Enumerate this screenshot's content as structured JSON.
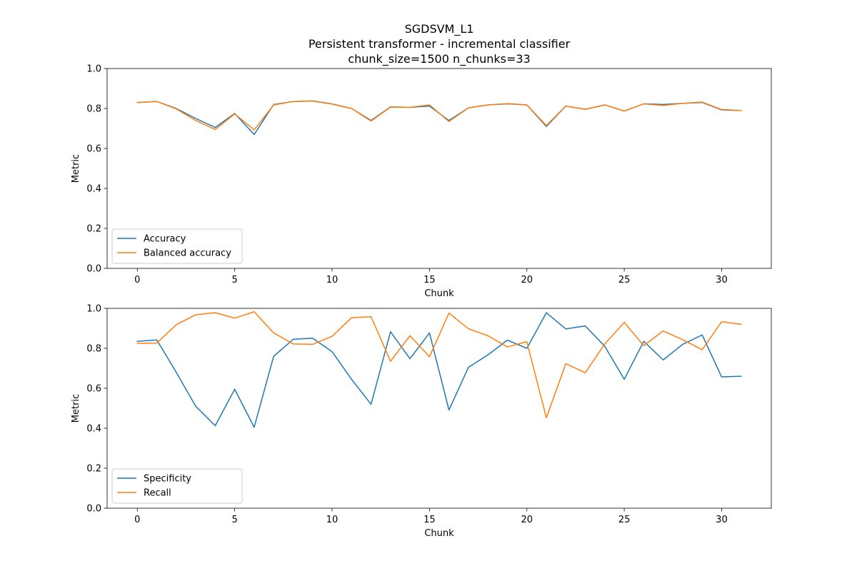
{
  "figure": {
    "title_lines": [
      "SGDSVM_L1",
      "Persistent transformer - incremental classifier",
      "chunk_size=1500 n_chunks=33"
    ]
  },
  "chart_data": [
    {
      "type": "line",
      "xlabel": "Chunk",
      "ylabel": "Metric",
      "xlim": [
        -1.55,
        32.55
      ],
      "ylim": [
        0.0,
        1.0
      ],
      "xticks": [
        0,
        5,
        10,
        15,
        20,
        25,
        30
      ],
      "xtick_labels": [
        "0",
        "5",
        "10",
        "15",
        "20",
        "25",
        "30"
      ],
      "yticks": [
        0.0,
        0.2,
        0.4,
        0.6,
        0.8,
        1.0
      ],
      "ytick_labels": [
        "0.0",
        "0.2",
        "0.4",
        "0.6",
        "0.8",
        "1.0"
      ],
      "grid": false,
      "legend_position": "lower-left",
      "series": [
        {
          "name": "Accuracy",
          "color": "#1f77b4",
          "x": [
            0,
            1,
            2,
            3,
            4,
            5,
            6,
            7,
            8,
            9,
            10,
            11,
            12,
            13,
            14,
            15,
            16,
            17,
            18,
            19,
            20,
            21,
            22,
            23,
            24,
            25,
            26,
            27,
            28,
            29,
            30,
            31
          ],
          "values": [
            0.83,
            0.835,
            0.8,
            0.75,
            0.705,
            0.775,
            0.67,
            0.82,
            0.835,
            0.838,
            0.823,
            0.8,
            0.74,
            0.808,
            0.806,
            0.812,
            0.74,
            0.803,
            0.818,
            0.823,
            0.818,
            0.71,
            0.812,
            0.796,
            0.818,
            0.787,
            0.823,
            0.82,
            0.826,
            0.83,
            0.793,
            0.79
          ]
        },
        {
          "name": "Balanced accuracy",
          "color": "#ff7f0e",
          "x": [
            0,
            1,
            2,
            3,
            4,
            5,
            6,
            7,
            8,
            9,
            10,
            11,
            12,
            13,
            14,
            15,
            16,
            17,
            18,
            19,
            20,
            21,
            22,
            23,
            24,
            25,
            26,
            27,
            28,
            29,
            30,
            31
          ],
          "values": [
            0.83,
            0.835,
            0.798,
            0.74,
            0.695,
            0.773,
            0.693,
            0.818,
            0.835,
            0.837,
            0.822,
            0.8,
            0.737,
            0.807,
            0.806,
            0.818,
            0.735,
            0.803,
            0.818,
            0.824,
            0.818,
            0.715,
            0.812,
            0.796,
            0.818,
            0.787,
            0.823,
            0.815,
            0.826,
            0.832,
            0.795,
            0.79
          ]
        }
      ]
    },
    {
      "type": "line",
      "xlabel": "Chunk",
      "ylabel": "Metric",
      "xlim": [
        -1.55,
        32.55
      ],
      "ylim": [
        0.0,
        1.0
      ],
      "xticks": [
        0,
        5,
        10,
        15,
        20,
        25,
        30
      ],
      "xtick_labels": [
        "0",
        "5",
        "10",
        "15",
        "20",
        "25",
        "30"
      ],
      "yticks": [
        0.0,
        0.2,
        0.4,
        0.6,
        0.8,
        1.0
      ],
      "ytick_labels": [
        "0.0",
        "0.2",
        "0.4",
        "0.6",
        "0.8",
        "1.0"
      ],
      "grid": false,
      "legend_position": "lower-left",
      "series": [
        {
          "name": "Specificity",
          "color": "#1f77b4",
          "x": [
            0,
            1,
            2,
            3,
            4,
            5,
            6,
            7,
            8,
            9,
            10,
            11,
            12,
            13,
            14,
            15,
            16,
            17,
            18,
            19,
            20,
            21,
            22,
            23,
            24,
            25,
            26,
            27,
            28,
            29,
            30,
            31
          ],
          "values": [
            0.835,
            0.842,
            0.68,
            0.51,
            0.413,
            0.595,
            0.405,
            0.76,
            0.845,
            0.851,
            0.783,
            0.645,
            0.52,
            0.883,
            0.748,
            0.877,
            0.491,
            0.705,
            0.767,
            0.841,
            0.8,
            0.978,
            0.897,
            0.912,
            0.81,
            0.645,
            0.835,
            0.742,
            0.82,
            0.867,
            0.657,
            0.66
          ]
        },
        {
          "name": "Recall",
          "color": "#ff7f0e",
          "x": [
            0,
            1,
            2,
            3,
            4,
            5,
            6,
            7,
            8,
            9,
            10,
            11,
            12,
            13,
            14,
            15,
            16,
            17,
            18,
            19,
            20,
            21,
            22,
            23,
            24,
            25,
            26,
            27,
            28,
            29,
            30,
            31
          ],
          "values": [
            0.825,
            0.826,
            0.918,
            0.968,
            0.978,
            0.951,
            0.983,
            0.877,
            0.822,
            0.82,
            0.86,
            0.953,
            0.958,
            0.735,
            0.863,
            0.758,
            0.976,
            0.898,
            0.863,
            0.807,
            0.833,
            0.452,
            0.723,
            0.678,
            0.822,
            0.93,
            0.813,
            0.887,
            0.843,
            0.793,
            0.933,
            0.92
          ]
        }
      ]
    }
  ]
}
